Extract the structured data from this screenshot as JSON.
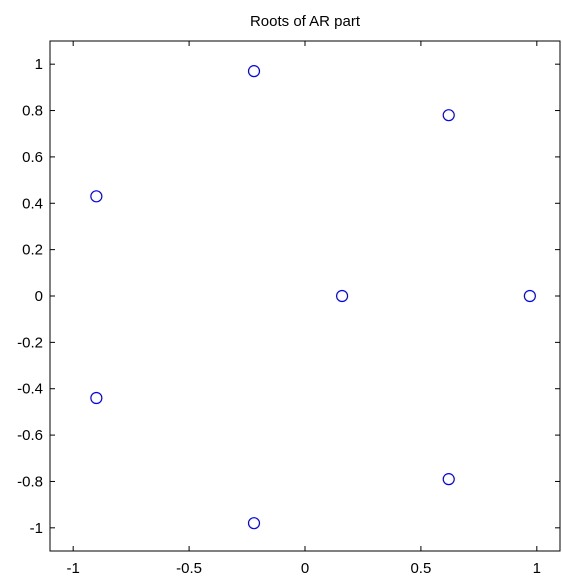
{
  "chart_data": {
    "type": "scatter",
    "title": "Roots of AR part",
    "xlabel": "",
    "ylabel": "",
    "xlim": [
      -1.1,
      1.1
    ],
    "ylim": [
      -1.1,
      1.1
    ],
    "grid": false,
    "marker": "circle",
    "marker_color": "#0000ff",
    "x_ticks": [
      -1,
      -0.5,
      0,
      0.5,
      1
    ],
    "x_tick_labels": [
      "-1",
      "-0.5",
      "0",
      "0.5",
      "1"
    ],
    "y_ticks": [
      1,
      0.8,
      0.6,
      0.4,
      0.2,
      0,
      -0.2,
      -0.4,
      -0.6,
      -0.8,
      -1
    ],
    "y_tick_labels": [
      "1",
      "0.8",
      "0.6",
      "0.4",
      "0.2",
      "0",
      "-0.2",
      "-0.4",
      "-0.6",
      "-0.8",
      "-1"
    ],
    "points": [
      {
        "x": -0.9,
        "y": 0.43
      },
      {
        "x": -0.9,
        "y": -0.44
      },
      {
        "x": -0.22,
        "y": 0.97
      },
      {
        "x": -0.22,
        "y": -0.98
      },
      {
        "x": 0.16,
        "y": 0.0
      },
      {
        "x": 0.62,
        "y": 0.78
      },
      {
        "x": 0.62,
        "y": -0.79
      },
      {
        "x": 0.97,
        "y": 0.0
      }
    ]
  }
}
